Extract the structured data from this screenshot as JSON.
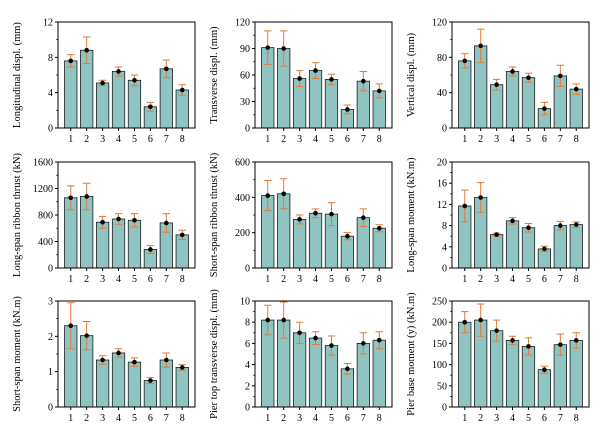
{
  "colors": {
    "bar_fill": "#8fc4c2",
    "bar_stroke": "#1f1f1f",
    "error_bar": "#e07b39",
    "point": "#000000",
    "axis": "#000000"
  },
  "chart_data": [
    {
      "type": "bar",
      "title": "",
      "xlabel": "",
      "ylabel": "Longitudinal displ. (mm)",
      "categories": [
        "1",
        "2",
        "3",
        "4",
        "5",
        "6",
        "7",
        "8"
      ],
      "values": [
        7.6,
        8.8,
        5.1,
        6.4,
        5.4,
        2.4,
        6.7,
        4.3
      ],
      "errors": [
        0.7,
        1.5,
        0.3,
        0.5,
        0.6,
        0.5,
        1.0,
        0.6
      ],
      "ylim": [
        0,
        12
      ],
      "yticks": [
        0,
        4,
        8,
        12
      ]
    },
    {
      "type": "bar",
      "title": "",
      "xlabel": "",
      "ylabel": "Transverse displ. (mm)",
      "categories": [
        "1",
        "2",
        "3",
        "4",
        "5",
        "6",
        "7",
        "8"
      ],
      "values": [
        91,
        90,
        56,
        65,
        55,
        21,
        53,
        42
      ],
      "errors": [
        19,
        20,
        9,
        9,
        6,
        5,
        11,
        8
      ],
      "ylim": [
        0,
        120
      ],
      "yticks": [
        0,
        30,
        60,
        90,
        120
      ]
    },
    {
      "type": "bar",
      "title": "",
      "xlabel": "",
      "ylabel": "Vertical displ. (mm)",
      "categories": [
        "1",
        "2",
        "3",
        "4",
        "5",
        "6",
        "7",
        "8"
      ],
      "values": [
        76,
        93,
        49,
        64,
        57,
        22,
        59,
        44
      ],
      "errors": [
        8,
        19,
        6,
        5,
        5,
        7,
        12,
        6
      ],
      "ylim": [
        0,
        120
      ],
      "yticks": [
        0,
        40,
        80,
        120
      ]
    },
    {
      "type": "bar",
      "title": "",
      "xlabel": "",
      "ylabel": "Long-span ribbon thrust (kN)",
      "categories": [
        "1",
        "2",
        "3",
        "4",
        "5",
        "6",
        "7",
        "8"
      ],
      "values": [
        1060,
        1080,
        690,
        740,
        720,
        280,
        680,
        500
      ],
      "errors": [
        180,
        200,
        90,
        80,
        100,
        60,
        140,
        70
      ],
      "ylim": [
        0,
        1600
      ],
      "yticks": [
        0,
        400,
        800,
        1200,
        1600
      ]
    },
    {
      "type": "bar",
      "title": "",
      "xlabel": "",
      "ylabel": "Short-span ribbon thrust (kN)",
      "categories": [
        "1",
        "2",
        "3",
        "4",
        "5",
        "6",
        "7",
        "8"
      ],
      "values": [
        410,
        420,
        275,
        310,
        305,
        180,
        285,
        225
      ],
      "errors": [
        85,
        85,
        25,
        25,
        65,
        20,
        50,
        20
      ],
      "ylim": [
        0,
        600
      ],
      "yticks": [
        0,
        200,
        400,
        600
      ]
    },
    {
      "type": "bar",
      "title": "",
      "xlabel": "",
      "ylabel": "Long-span moment (kN.m)",
      "categories": [
        "1",
        "2",
        "3",
        "4",
        "5",
        "6",
        "7",
        "8"
      ],
      "values": [
        11.7,
        13.3,
        6.3,
        8.9,
        7.6,
        3.6,
        8.0,
        8.2
      ],
      "errors": [
        3.0,
        2.8,
        0.3,
        0.6,
        0.8,
        0.5,
        0.8,
        0.5
      ],
      "ylim": [
        0,
        20
      ],
      "yticks": [
        0,
        4,
        8,
        12,
        16,
        20
      ]
    },
    {
      "type": "bar",
      "title": "",
      "xlabel": "",
      "ylabel": "Short-span moment (kN.m)",
      "categories": [
        "1",
        "2",
        "3",
        "4",
        "5",
        "6",
        "7",
        "8"
      ],
      "values": [
        2.3,
        2.02,
        1.33,
        1.53,
        1.27,
        0.75,
        1.33,
        1.12
      ],
      "errors": [
        0.65,
        0.4,
        0.12,
        0.12,
        0.12,
        0.08,
        0.2,
        0.08
      ],
      "ylim": [
        0,
        3
      ],
      "yticks": [
        0,
        1,
        2,
        3
      ]
    },
    {
      "type": "bar",
      "title": "",
      "xlabel": "",
      "ylabel": "Pier top transverse displ. (mm)",
      "categories": [
        "1",
        "2",
        "3",
        "4",
        "5",
        "6",
        "7",
        "8"
      ],
      "values": [
        8.2,
        8.2,
        7.0,
        6.5,
        5.8,
        3.6,
        6.0,
        6.3
      ],
      "errors": [
        1.4,
        1.7,
        1.0,
        0.6,
        0.9,
        0.5,
        1.0,
        0.8
      ],
      "ylim": [
        0,
        10
      ],
      "yticks": [
        0,
        2,
        4,
        6,
        8,
        10
      ]
    },
    {
      "type": "bar",
      "title": "",
      "xlabel": "",
      "ylabel": "Pier base moment (y) (kN.m)",
      "categories": [
        "1",
        "2",
        "3",
        "4",
        "5",
        "6",
        "7",
        "8"
      ],
      "values": [
        200,
        205,
        180,
        157,
        143,
        88,
        147,
        157
      ],
      "errors": [
        25,
        38,
        25,
        10,
        20,
        8,
        25,
        18
      ],
      "ylim": [
        0,
        250
      ],
      "yticks": [
        0,
        50,
        100,
        150,
        200,
        250
      ]
    }
  ]
}
